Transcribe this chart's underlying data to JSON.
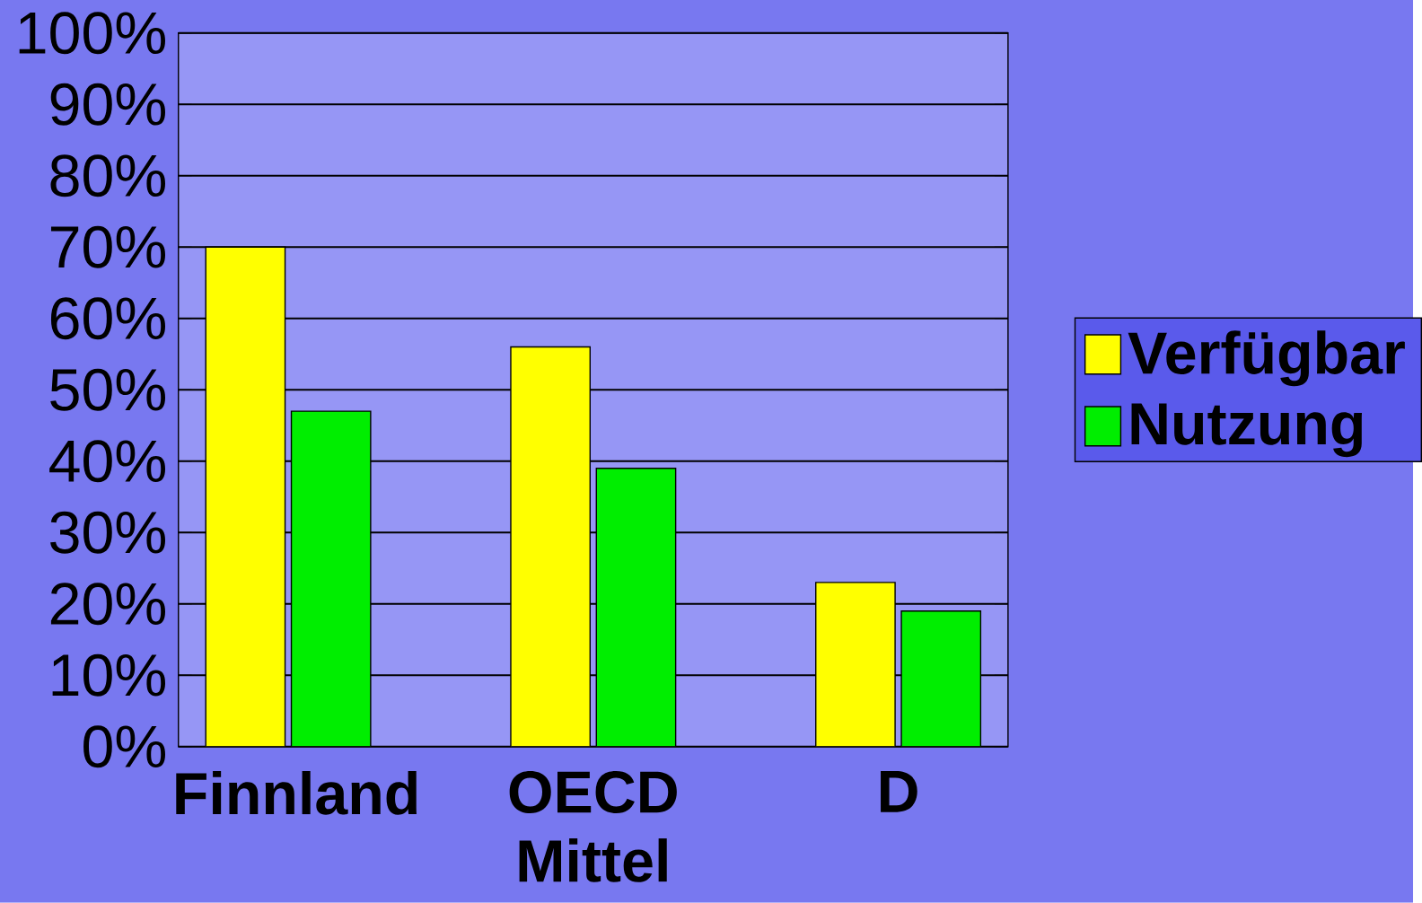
{
  "chart_data": {
    "type": "bar",
    "categories": [
      "Finnland",
      "OECD Mittel",
      "D"
    ],
    "series": [
      {
        "name": "Verfügbar",
        "color": "#ffff00",
        "values": [
          70,
          56,
          23
        ]
      },
      {
        "name": "Nutzung",
        "color": "#00ee00",
        "values": [
          47,
          39,
          19
        ]
      }
    ],
    "ylim": [
      0,
      100
    ],
    "yticks": [
      {
        "value": 0,
        "label": "0%"
      },
      {
        "value": 10,
        "label": "10%"
      },
      {
        "value": 20,
        "label": "20%"
      },
      {
        "value": 30,
        "label": "30%"
      },
      {
        "value": 40,
        "label": "40%"
      },
      {
        "value": 50,
        "label": "50%"
      },
      {
        "value": 60,
        "label": "60%"
      },
      {
        "value": 70,
        "label": "70%"
      },
      {
        "value": 80,
        "label": "80%"
      },
      {
        "value": 90,
        "label": "90%"
      },
      {
        "value": 100,
        "label": "100%"
      }
    ],
    "grid": "y",
    "legend": "right"
  }
}
